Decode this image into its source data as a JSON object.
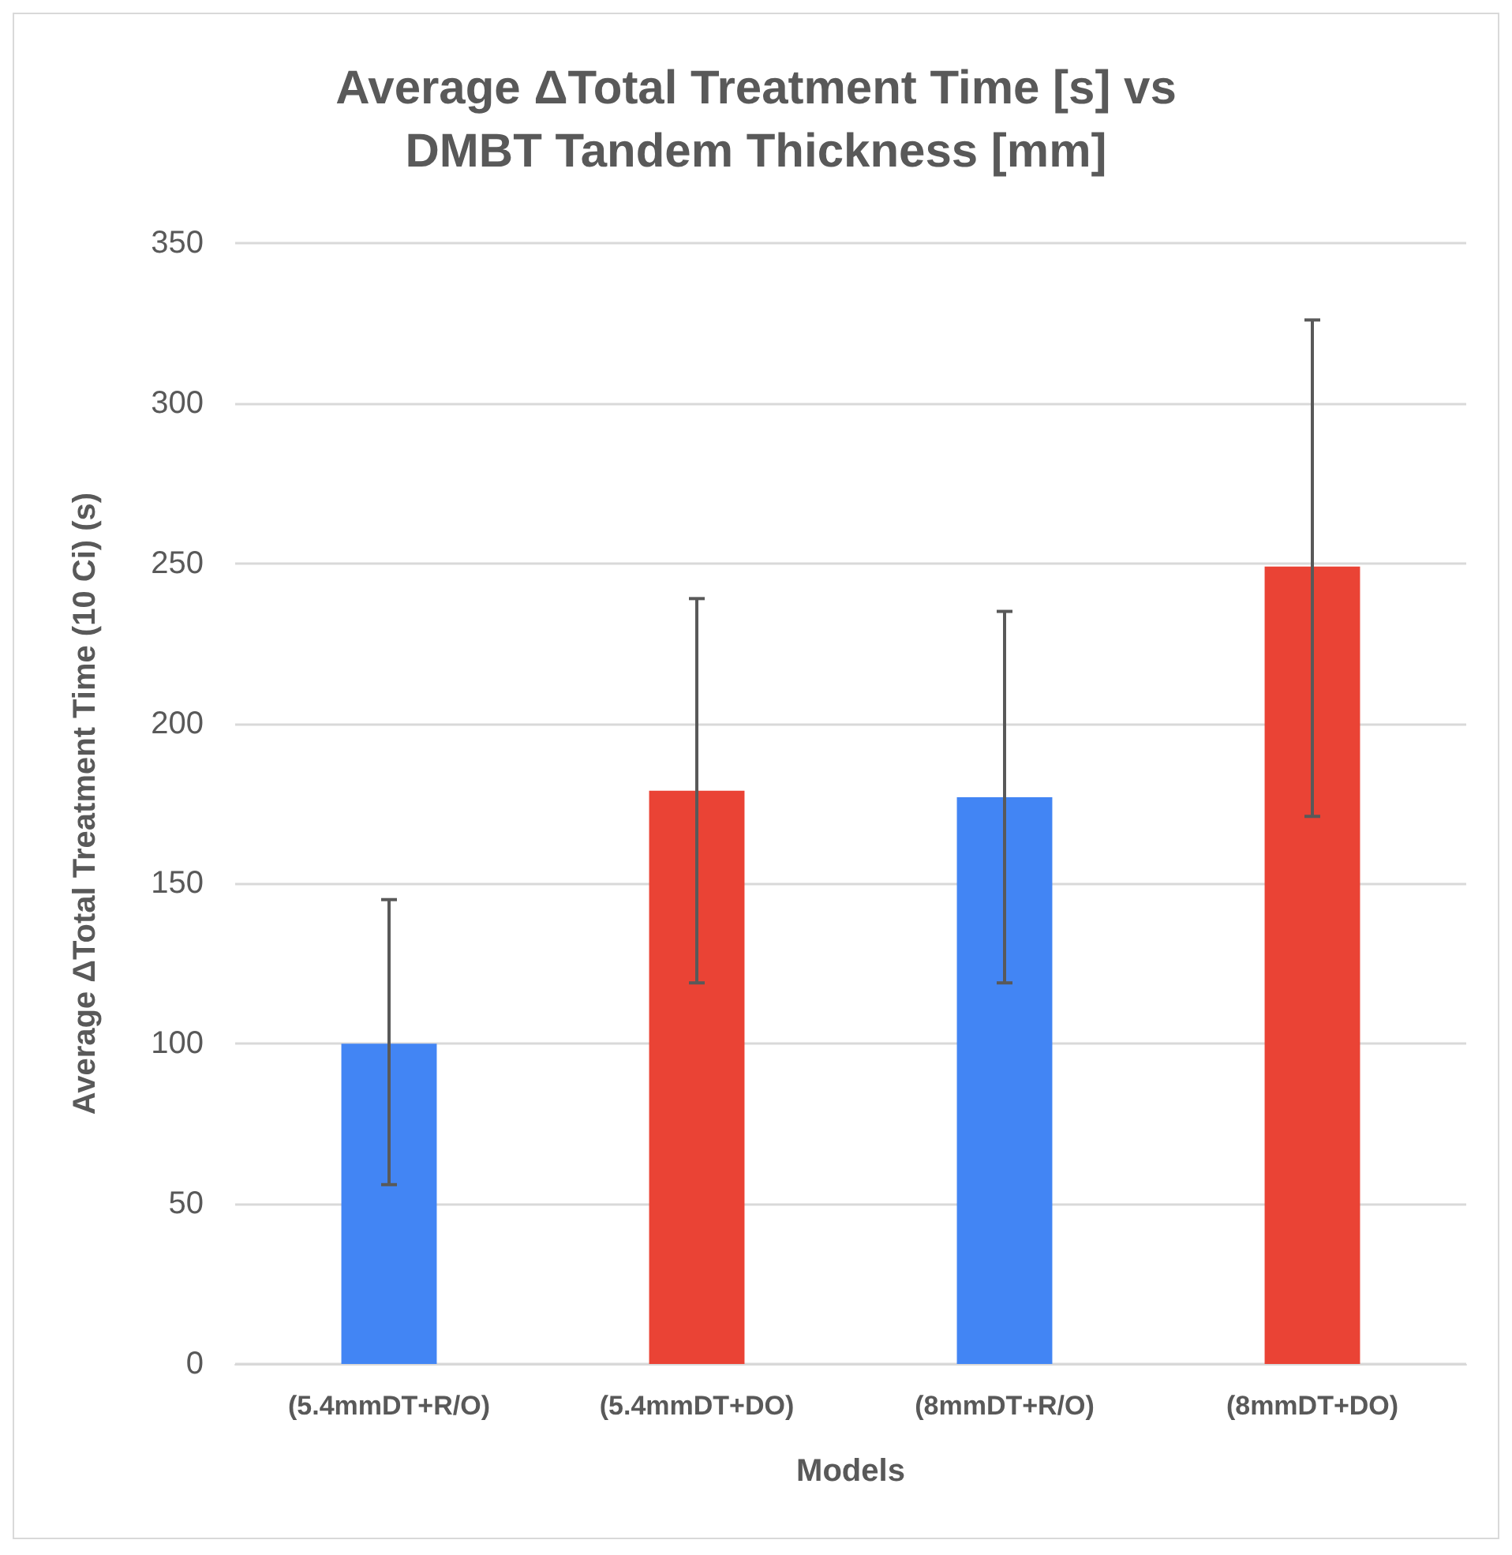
{
  "chart_data": {
    "type": "bar",
    "title": "Average ΔTotal Treatment Time [s] vs\nDMBT Tandem Thickness [mm]",
    "xlabel": "Models",
    "ylabel": "Average ΔTotal Treatment Time (10 Ci) (s)",
    "categories": [
      "(5.4mmDT+R/O)",
      "(5.4mmDT+DO)",
      "(8mmDT+R/O)",
      "(8mmDT+DO)"
    ],
    "values": [
      100,
      179,
      177,
      249
    ],
    "colors": [
      "#4285f4",
      "#ea4335",
      "#4285f4",
      "#ea4335"
    ],
    "errors": [
      [
        56,
        145
      ],
      [
        119,
        239
      ],
      [
        119,
        235
      ],
      [
        171,
        326
      ]
    ],
    "ylim": [
      0,
      350
    ],
    "yticks": [
      0,
      50,
      100,
      150,
      200,
      250,
      300,
      350
    ],
    "grid": "y"
  }
}
